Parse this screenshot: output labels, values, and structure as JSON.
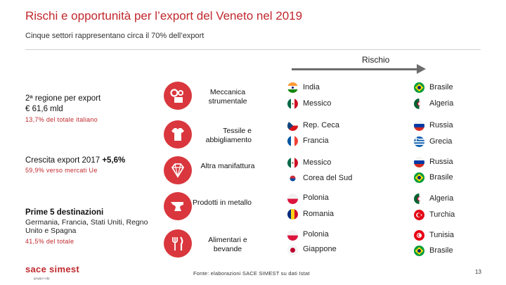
{
  "header": {
    "title": "Rischi e opportunità per l’export del Veneto nel 2019",
    "subtitle": "Cinque settori rappresentano circa il 70% dell’export"
  },
  "risk_axis": {
    "label": "Rischio"
  },
  "left_panel": {
    "ranking_line1": "2ª regione per export",
    "ranking_line2": "€ 61,6 mld",
    "share_note": "13,7% del totale italiano",
    "growth_label": "Crescita export 2017 ",
    "growth_value": "+5,6%",
    "growth_note": "59,9% verso mercati Ue",
    "destinations_title": "Prime 5 destinazioni",
    "destinations_list": "Germania, Francia, Stati Uniti, Regno Unito e Spagna",
    "destinations_note": "41,5% del totale"
  },
  "sectors": [
    {
      "name": "Meccanica strumentale",
      "icon": "gears-icon",
      "low_risk": [
        {
          "country": "India",
          "flag": "india-flag-icon"
        },
        {
          "country": "Messico",
          "flag": "mexico-flag-icon"
        }
      ],
      "high_risk": [
        {
          "country": "Brasile",
          "flag": "brazil-flag-icon"
        },
        {
          "country": "Algeria",
          "flag": "algeria-flag-icon"
        }
      ]
    },
    {
      "name": "Tessile e abbigliamento",
      "icon": "tshirt-icon",
      "low_risk": [
        {
          "country": "Rep. Ceca",
          "flag": "czech-flag-icon"
        },
        {
          "country": "Francia",
          "flag": "france-flag-icon"
        }
      ],
      "high_risk": [
        {
          "country": "Russia",
          "flag": "russia-flag-icon"
        },
        {
          "country": "Grecia",
          "flag": "greece-flag-icon"
        }
      ]
    },
    {
      "name": "Altra manifattura",
      "icon": "diamond-icon",
      "low_risk": [
        {
          "country": "Messico",
          "flag": "mexico-flag-icon"
        },
        {
          "country": "Corea del Sud",
          "flag": "south-korea-flag-icon"
        }
      ],
      "high_risk": [
        {
          "country": "Russia",
          "flag": "russia-flag-icon"
        },
        {
          "country": "Brasile",
          "flag": "brazil-flag-icon"
        }
      ]
    },
    {
      "name": "Prodotti in metallo",
      "icon": "anvil-icon",
      "low_risk": [
        {
          "country": "Polonia",
          "flag": "poland-flag-icon"
        },
        {
          "country": "Romania",
          "flag": "romania-flag-icon"
        }
      ],
      "high_risk": [
        {
          "country": "Algeria",
          "flag": "algeria-flag-icon"
        },
        {
          "country": "Turchia",
          "flag": "turkey-flag-icon"
        }
      ]
    },
    {
      "name": "Alimentari e bevande",
      "icon": "cutlery-icon",
      "low_risk": [
        {
          "country": "Polonia",
          "flag": "poland-flag-icon"
        },
        {
          "country": "Giappone",
          "flag": "japan-flag-icon"
        }
      ],
      "high_risk": [
        {
          "country": "Tunisia",
          "flag": "tunisia-flag-icon"
        },
        {
          "country": "Brasile",
          "flag": "brazil-flag-icon"
        }
      ]
    }
  ],
  "footer": {
    "source": "Fonte: elaborazioni SACE SIMEST su dati Istat",
    "page_number": "13",
    "logo": "sace simest",
    "logo_tagline": "gruppo cdp"
  },
  "colors": {
    "accent": "#c0282d",
    "icon_circle": "#d9373d",
    "arrow": "#6d6d6d"
  }
}
